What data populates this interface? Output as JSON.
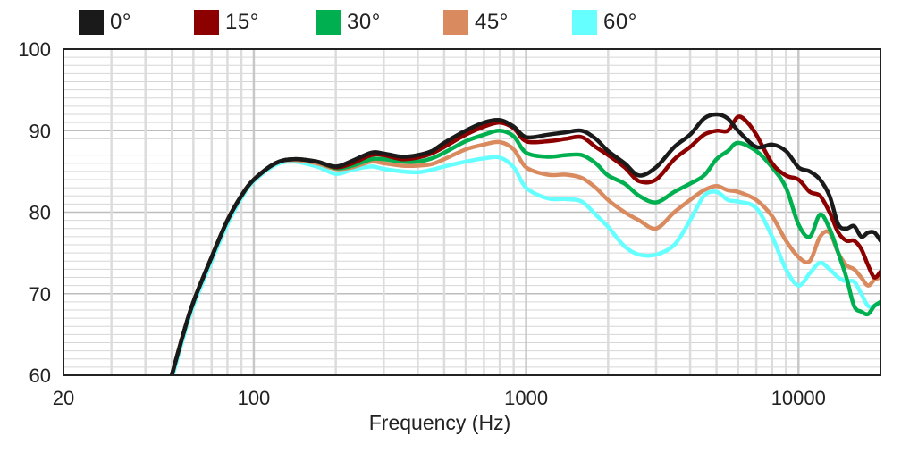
{
  "chart_data": {
    "type": "line",
    "title": "",
    "xlabel": "Frequency (Hz)",
    "ylabel": "",
    "xscale": "log",
    "xlim": [
      20,
      20000
    ],
    "ylim": [
      60,
      100
    ],
    "x_ticks": [
      20,
      100,
      1000,
      10000
    ],
    "x_tick_labels": [
      "20",
      "100",
      "1000",
      "10000"
    ],
    "y_ticks": [
      60,
      70,
      80,
      90,
      100
    ],
    "y_tick_labels": [
      "60",
      "70",
      "80",
      "90",
      "100"
    ],
    "grid": true,
    "legend_position": "top",
    "series": [
      {
        "name": "0°",
        "color": "#1a1a1a",
        "points": [
          [
            50,
            60
          ],
          [
            55,
            65
          ],
          [
            60,
            69
          ],
          [
            70,
            74.5
          ],
          [
            80,
            79
          ],
          [
            90,
            82
          ],
          [
            100,
            84
          ],
          [
            120,
            86
          ],
          [
            140,
            86.5
          ],
          [
            170,
            86.2
          ],
          [
            200,
            85.6
          ],
          [
            230,
            86.3
          ],
          [
            270,
            87.3
          ],
          [
            300,
            87.2
          ],
          [
            350,
            86.8
          ],
          [
            400,
            87
          ],
          [
            450,
            87.5
          ],
          [
            500,
            88.5
          ],
          [
            600,
            90
          ],
          [
            700,
            91
          ],
          [
            800,
            91.3
          ],
          [
            900,
            90.5
          ],
          [
            1000,
            89.2
          ],
          [
            1200,
            89.5
          ],
          [
            1400,
            89.8
          ],
          [
            1600,
            90
          ],
          [
            1800,
            89
          ],
          [
            2000,
            87.5
          ],
          [
            2300,
            86
          ],
          [
            2600,
            84.5
          ],
          [
            3000,
            85.5
          ],
          [
            3500,
            88
          ],
          [
            4000,
            89.5
          ],
          [
            4500,
            91.5
          ],
          [
            5000,
            92
          ],
          [
            5500,
            91.5
          ],
          [
            6000,
            90
          ],
          [
            7000,
            88
          ],
          [
            8000,
            88.3
          ],
          [
            9000,
            87.5
          ],
          [
            10000,
            85.5
          ],
          [
            11000,
            85
          ],
          [
            12000,
            84
          ],
          [
            13000,
            82
          ],
          [
            14000,
            78.5
          ],
          [
            15000,
            78
          ],
          [
            16000,
            78.3
          ],
          [
            17000,
            77
          ],
          [
            18000,
            77.5
          ],
          [
            19000,
            77.5
          ],
          [
            20000,
            76.5
          ]
        ]
      },
      {
        "name": "15°",
        "color": "#8c0000",
        "points": [
          [
            50,
            60
          ],
          [
            55,
            65
          ],
          [
            60,
            69
          ],
          [
            70,
            74.5
          ],
          [
            80,
            79
          ],
          [
            90,
            82
          ],
          [
            100,
            84
          ],
          [
            120,
            86
          ],
          [
            140,
            86.5
          ],
          [
            170,
            86.2
          ],
          [
            200,
            85.5
          ],
          [
            230,
            86
          ],
          [
            270,
            87
          ],
          [
            300,
            87
          ],
          [
            350,
            86.5
          ],
          [
            400,
            86.7
          ],
          [
            450,
            87.2
          ],
          [
            500,
            88
          ],
          [
            600,
            89.5
          ],
          [
            700,
            90.5
          ],
          [
            800,
            91
          ],
          [
            900,
            90.3
          ],
          [
            1000,
            88.7
          ],
          [
            1200,
            88.7
          ],
          [
            1400,
            89
          ],
          [
            1600,
            89.2
          ],
          [
            1800,
            88
          ],
          [
            2000,
            87
          ],
          [
            2300,
            85.5
          ],
          [
            2600,
            83.8
          ],
          [
            3000,
            84
          ],
          [
            3500,
            86.5
          ],
          [
            4000,
            88
          ],
          [
            4500,
            89.5
          ],
          [
            5000,
            90
          ],
          [
            5500,
            90
          ],
          [
            6000,
            91.7
          ],
          [
            6500,
            91
          ],
          [
            7000,
            89.5
          ],
          [
            8000,
            86
          ],
          [
            9000,
            84.5
          ],
          [
            10000,
            84
          ],
          [
            11000,
            82.5
          ],
          [
            12000,
            82
          ],
          [
            13000,
            80
          ],
          [
            14000,
            77.5
          ],
          [
            15000,
            76.5
          ],
          [
            16000,
            76.5
          ],
          [
            17000,
            75.5
          ],
          [
            18000,
            73.5
          ],
          [
            19000,
            72
          ],
          [
            20000,
            72.7
          ]
        ]
      },
      {
        "name": "30°",
        "color": "#00b050",
        "points": [
          [
            50,
            60
          ],
          [
            55,
            65
          ],
          [
            60,
            69
          ],
          [
            70,
            74.5
          ],
          [
            80,
            79
          ],
          [
            90,
            82
          ],
          [
            100,
            84
          ],
          [
            120,
            86
          ],
          [
            140,
            86.5
          ],
          [
            170,
            86.2
          ],
          [
            200,
            85.4
          ],
          [
            230,
            85.7
          ],
          [
            270,
            86.5
          ],
          [
            300,
            86.5
          ],
          [
            350,
            86.2
          ],
          [
            400,
            86.2
          ],
          [
            450,
            86.6
          ],
          [
            500,
            87.3
          ],
          [
            600,
            88.7
          ],
          [
            700,
            89.5
          ],
          [
            800,
            90
          ],
          [
            900,
            89.3
          ],
          [
            1000,
            87.3
          ],
          [
            1200,
            86.8
          ],
          [
            1400,
            87
          ],
          [
            1600,
            87
          ],
          [
            1800,
            86
          ],
          [
            2000,
            84.5
          ],
          [
            2300,
            83.5
          ],
          [
            2600,
            82
          ],
          [
            3000,
            81.2
          ],
          [
            3500,
            82.5
          ],
          [
            4000,
            83.5
          ],
          [
            4500,
            84.5
          ],
          [
            5000,
            86.5
          ],
          [
            5500,
            87.5
          ],
          [
            6000,
            88.5
          ],
          [
            7000,
            87.5
          ],
          [
            8000,
            85.5
          ],
          [
            9000,
            83
          ],
          [
            10000,
            78.5
          ],
          [
            11000,
            77
          ],
          [
            12000,
            79.7
          ],
          [
            13000,
            78
          ],
          [
            14000,
            75
          ],
          [
            15000,
            72
          ],
          [
            16000,
            68.5
          ],
          [
            17000,
            67.8
          ],
          [
            18000,
            67.5
          ],
          [
            19000,
            68.5
          ],
          [
            20000,
            69
          ]
        ]
      },
      {
        "name": "45°",
        "color": "#d98b5f",
        "points": [
          [
            50,
            60
          ],
          [
            55,
            65
          ],
          [
            60,
            69
          ],
          [
            70,
            74.5
          ],
          [
            80,
            79
          ],
          [
            90,
            82
          ],
          [
            100,
            84
          ],
          [
            120,
            86
          ],
          [
            140,
            86.4
          ],
          [
            170,
            86
          ],
          [
            200,
            85.3
          ],
          [
            230,
            85.5
          ],
          [
            270,
            86.2
          ],
          [
            300,
            86
          ],
          [
            350,
            85.7
          ],
          [
            400,
            85.7
          ],
          [
            450,
            85.9
          ],
          [
            500,
            86.5
          ],
          [
            600,
            87.7
          ],
          [
            700,
            88.3
          ],
          [
            800,
            88.6
          ],
          [
            900,
            87.7
          ],
          [
            1000,
            85.5
          ],
          [
            1200,
            84.6
          ],
          [
            1400,
            84.6
          ],
          [
            1600,
            84.2
          ],
          [
            1800,
            83
          ],
          [
            2000,
            81.5
          ],
          [
            2300,
            80
          ],
          [
            2600,
            79
          ],
          [
            3000,
            78
          ],
          [
            3500,
            80
          ],
          [
            4000,
            81.5
          ],
          [
            4500,
            82.7
          ],
          [
            5000,
            83.2
          ],
          [
            5500,
            82.7
          ],
          [
            6000,
            82.5
          ],
          [
            7000,
            81.5
          ],
          [
            8000,
            79.5
          ],
          [
            9000,
            76.5
          ],
          [
            10000,
            74.5
          ],
          [
            11000,
            74
          ],
          [
            12000,
            77
          ],
          [
            13000,
            77.5
          ],
          [
            14000,
            75
          ],
          [
            15000,
            73.5
          ],
          [
            16000,
            73
          ],
          [
            17000,
            72
          ],
          [
            18000,
            71
          ],
          [
            19000,
            71.7
          ],
          [
            20000,
            72
          ]
        ]
      },
      {
        "name": "60°",
        "color": "#66ffff",
        "points": [
          [
            50,
            59.5
          ],
          [
            55,
            64.5
          ],
          [
            60,
            68.5
          ],
          [
            70,
            74
          ],
          [
            80,
            78.5
          ],
          [
            90,
            81.7
          ],
          [
            100,
            83.8
          ],
          [
            120,
            85.8
          ],
          [
            140,
            86.2
          ],
          [
            170,
            85.6
          ],
          [
            200,
            84.7
          ],
          [
            230,
            85.2
          ],
          [
            270,
            85.6
          ],
          [
            300,
            85.3
          ],
          [
            350,
            85
          ],
          [
            400,
            84.9
          ],
          [
            450,
            85.2
          ],
          [
            500,
            85.6
          ],
          [
            600,
            86.2
          ],
          [
            700,
            86.6
          ],
          [
            800,
            86.7
          ],
          [
            900,
            85.5
          ],
          [
            1000,
            83
          ],
          [
            1200,
            81.7
          ],
          [
            1400,
            81.6
          ],
          [
            1600,
            81.3
          ],
          [
            1800,
            79.7
          ],
          [
            2000,
            78.2
          ],
          [
            2300,
            75.8
          ],
          [
            2600,
            74.8
          ],
          [
            3000,
            74.8
          ],
          [
            3500,
            76
          ],
          [
            4000,
            79
          ],
          [
            4500,
            82
          ],
          [
            5000,
            82.5
          ],
          [
            5500,
            81.5
          ],
          [
            6000,
            81.3
          ],
          [
            7000,
            80.5
          ],
          [
            8000,
            77
          ],
          [
            9000,
            73
          ],
          [
            10000,
            71
          ],
          [
            11000,
            72.5
          ],
          [
            12000,
            73.8
          ],
          [
            13000,
            73
          ],
          [
            14000,
            72
          ],
          [
            15000,
            71.5
          ],
          [
            16000,
            71.5
          ],
          [
            17000,
            70
          ],
          [
            18000,
            68.5
          ],
          [
            19000,
            68.5
          ],
          [
            20000,
            69
          ]
        ]
      }
    ]
  }
}
